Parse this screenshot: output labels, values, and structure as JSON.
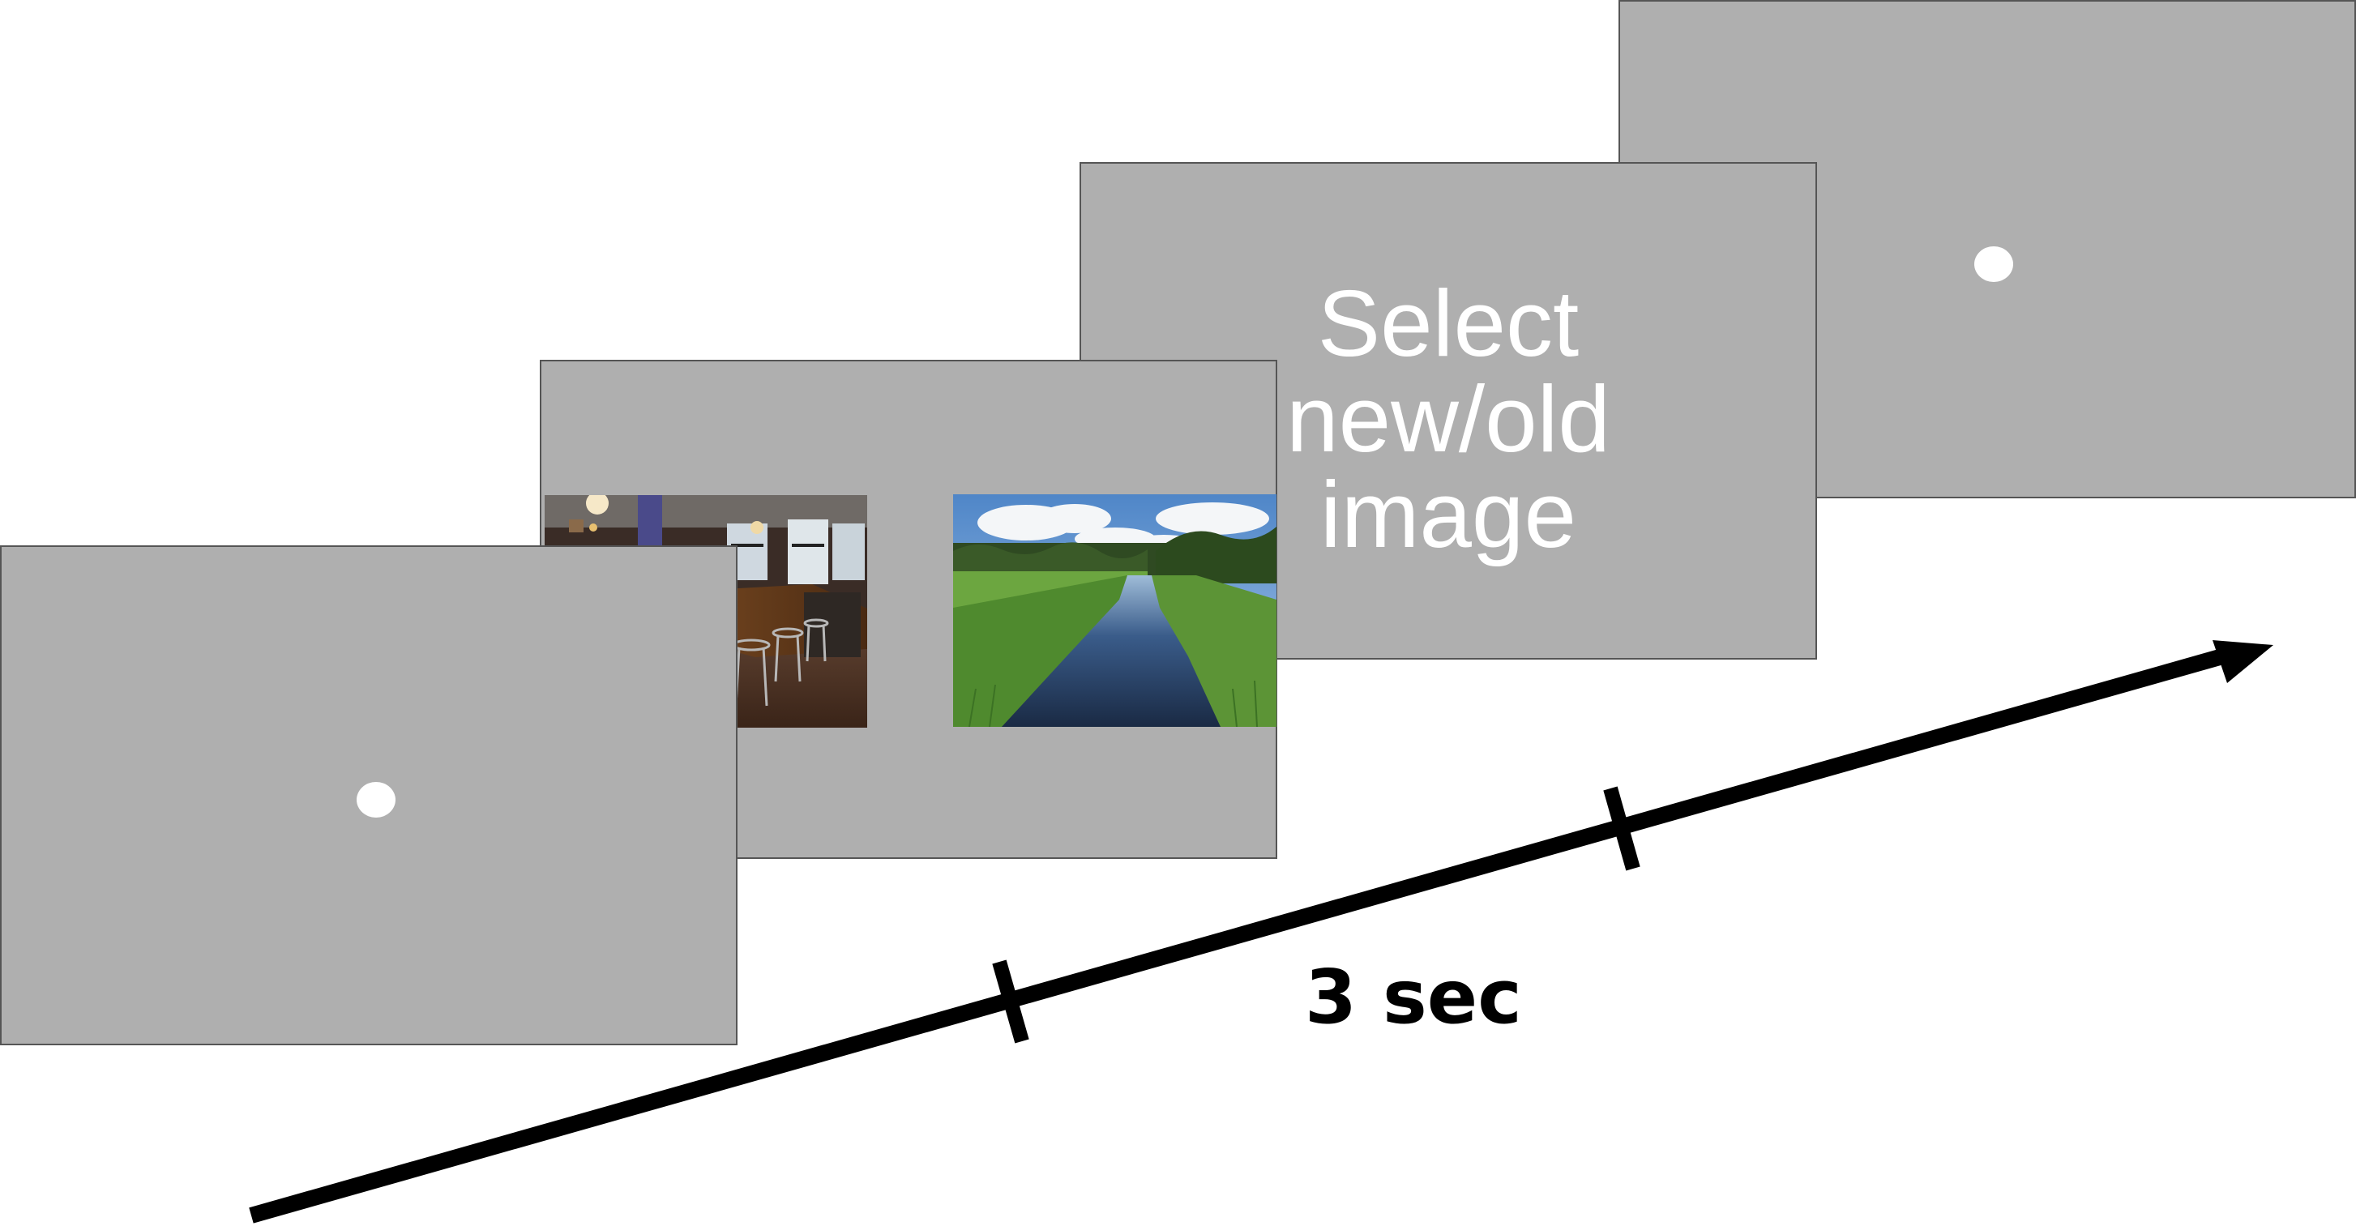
{
  "screens": {
    "fixation_start": {
      "content": "fixation-dot"
    },
    "image_pair": {
      "left_image": "cafe-interior-photo",
      "right_image": "river-landscape-photo"
    },
    "response_prompt": {
      "text": "Select\nnew/old\nimage"
    },
    "fixation_end": {
      "content": "fixation-dot"
    }
  },
  "timeline": {
    "duration_label": "3 sec",
    "color": "#000000"
  },
  "colors": {
    "screen_background": "#afafaf",
    "screen_border": "#555555",
    "dot": "#ffffff",
    "prompt_text": "#ffffff"
  }
}
